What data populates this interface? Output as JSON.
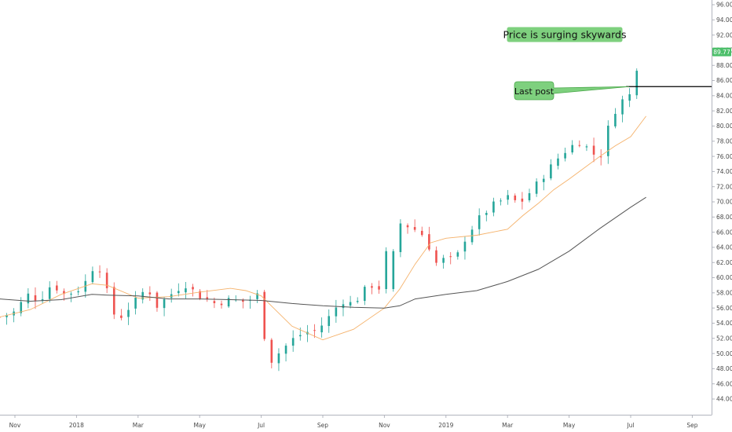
{
  "chart_data": {
    "type": "candlestick",
    "y_axis": {
      "side": "right",
      "ylim": [
        43.2,
        97.0
      ],
      "ticks": [
        "44.00",
        "46.00",
        "48.00",
        "50.00",
        "52.00",
        "54.00",
        "56.00",
        "58.00",
        "60.00",
        "62.00",
        "64.00",
        "66.00",
        "68.00",
        "70.00",
        "72.00",
        "74.00",
        "76.00",
        "78.00",
        "80.00",
        "82.00",
        "84.00",
        "86.00",
        "88.00",
        "90.00",
        "92.00",
        "94.00",
        "96.00"
      ]
    },
    "x_axis": {
      "ticks": [
        {
          "label": "Nov",
          "month_index": 0
        },
        {
          "label": "2018",
          "month_index": 2
        },
        {
          "label": "Mar",
          "month_index": 4
        },
        {
          "label": "May",
          "month_index": 6
        },
        {
          "label": "Jul",
          "month_index": 8
        },
        {
          "label": "Sep",
          "month_index": 10
        },
        {
          "label": "Nov",
          "month_index": 12
        },
        {
          "label": "2019",
          "month_index": 14
        },
        {
          "label": "Mar",
          "month_index": 16
        },
        {
          "label": "May",
          "month_index": 18
        },
        {
          "label": "Jul",
          "month_index": 20
        },
        {
          "label": "Sep",
          "month_index": 22
        }
      ]
    },
    "price_path": [
      [
        -0.5,
        54.8
      ],
      [
        0.0,
        55.5
      ],
      [
        0.4,
        57.8
      ],
      [
        0.8,
        57.0
      ],
      [
        1.2,
        59.2
      ],
      [
        1.6,
        57.8
      ],
      [
        2.0,
        58.2
      ],
      [
        2.3,
        59.5
      ],
      [
        2.6,
        61.8
      ],
      [
        2.8,
        61.0
      ],
      [
        3.0,
        58.0
      ],
      [
        3.3,
        54.2
      ],
      [
        3.6,
        55.6
      ],
      [
        4.0,
        57.3
      ],
      [
        4.3,
        58.8
      ],
      [
        4.6,
        56.2
      ],
      [
        5.0,
        57.6
      ],
      [
        5.5,
        59.2
      ],
      [
        6.0,
        57.6
      ],
      [
        6.5,
        56.6
      ],
      [
        7.0,
        57.1
      ],
      [
        7.5,
        56.8
      ],
      [
        7.9,
        57.8
      ],
      [
        8.05,
        54.5
      ],
      [
        8.2,
        48.5
      ],
      [
        8.6,
        50.2
      ],
      [
        9.0,
        51.8
      ],
      [
        9.4,
        52.8
      ],
      [
        9.8,
        53.0
      ],
      [
        10.2,
        54.8
      ],
      [
        10.6,
        57.0
      ],
      [
        11.0,
        56.5
      ],
      [
        11.3,
        58.2
      ],
      [
        11.6,
        59.0
      ],
      [
        11.9,
        58.5
      ],
      [
        12.1,
        62.8
      ],
      [
        12.2,
        67.8
      ],
      [
        12.5,
        67.2
      ],
      [
        12.9,
        66.6
      ],
      [
        13.3,
        65.5
      ],
      [
        13.7,
        61.8
      ],
      [
        14.0,
        62.6
      ],
      [
        14.3,
        62.3
      ],
      [
        14.6,
        65.0
      ],
      [
        15.0,
        67.5
      ],
      [
        15.5,
        69.5
      ],
      [
        16.0,
        70.6
      ],
      [
        16.4,
        69.8
      ],
      [
        16.8,
        71.6
      ],
      [
        17.2,
        73.6
      ],
      [
        17.6,
        75.6
      ],
      [
        18.0,
        77.2
      ],
      [
        18.4,
        78.0
      ],
      [
        18.7,
        76.6
      ],
      [
        19.0,
        75.7
      ],
      [
        19.3,
        80.2
      ],
      [
        19.6,
        83.0
      ],
      [
        20.0,
        84.2
      ],
      [
        20.2,
        87.8
      ],
      [
        20.35,
        89.77
      ]
    ],
    "series": [
      {
        "kind": "moving-average-short",
        "points": [
          [
            -0.5,
            54.8
          ],
          [
            0.5,
            55.8
          ],
          [
            1.5,
            57.8
          ],
          [
            2.5,
            59.2
          ],
          [
            3.0,
            59.0
          ],
          [
            4.0,
            57.3
          ],
          [
            5.0,
            57.5
          ],
          [
            6.0,
            58.1
          ],
          [
            7.0,
            58.6
          ],
          [
            7.5,
            58.3
          ],
          [
            8.0,
            57.6
          ],
          [
            9.0,
            53.6
          ],
          [
            10.0,
            51.8
          ],
          [
            11.0,
            53.2
          ],
          [
            12.0,
            56.0
          ],
          [
            12.5,
            58.5
          ],
          [
            13.0,
            61.8
          ],
          [
            13.5,
            64.6
          ],
          [
            14.0,
            65.2
          ],
          [
            15.0,
            65.6
          ],
          [
            16.0,
            66.4
          ],
          [
            16.5,
            68.2
          ],
          [
            17.0,
            69.8
          ],
          [
            17.5,
            71.6
          ],
          [
            18.0,
            73.0
          ],
          [
            19.0,
            76.0
          ],
          [
            19.5,
            77.4
          ],
          [
            20.0,
            78.6
          ],
          [
            20.5,
            81.3
          ]
        ]
      },
      {
        "kind": "moving-average-long",
        "points": [
          [
            -0.5,
            57.2
          ],
          [
            0.5,
            56.9
          ],
          [
            1.5,
            57.1
          ],
          [
            2.5,
            57.8
          ],
          [
            3.0,
            57.7
          ],
          [
            4.0,
            57.6
          ],
          [
            5.0,
            57.2
          ],
          [
            6.0,
            57.2
          ],
          [
            7.0,
            57.1
          ],
          [
            8.0,
            57.0
          ],
          [
            9.0,
            56.6
          ],
          [
            10.0,
            56.3
          ],
          [
            11.0,
            56.1
          ],
          [
            12.0,
            56.0
          ],
          [
            12.5,
            56.3
          ],
          [
            13.0,
            57.2
          ],
          [
            14.0,
            57.8
          ],
          [
            15.0,
            58.3
          ],
          [
            16.0,
            59.5
          ],
          [
            17.0,
            61.1
          ],
          [
            18.0,
            63.5
          ],
          [
            19.0,
            66.5
          ],
          [
            20.0,
            69.3
          ],
          [
            20.5,
            70.6
          ]
        ]
      }
    ],
    "last_price": "89.77",
    "horizontal_line": {
      "value": 85.2
    },
    "annotations": [
      {
        "text": "Price is surging skywards",
        "style": "green-box"
      },
      {
        "text": "Last post",
        "style": "green-callout",
        "target_x": 19.95,
        "target_y": 85.2
      }
    ],
    "colors": {
      "up": "#26a69a",
      "down": "#ef5350",
      "ma_short": "#f5b26b",
      "ma_long": "#555555",
      "annotation_fill": "#7ed07e",
      "annotation_border": "#4aa84a",
      "price_label": "#4cbf6a",
      "axis": "#b2b5be",
      "hline": "#000000"
    }
  }
}
